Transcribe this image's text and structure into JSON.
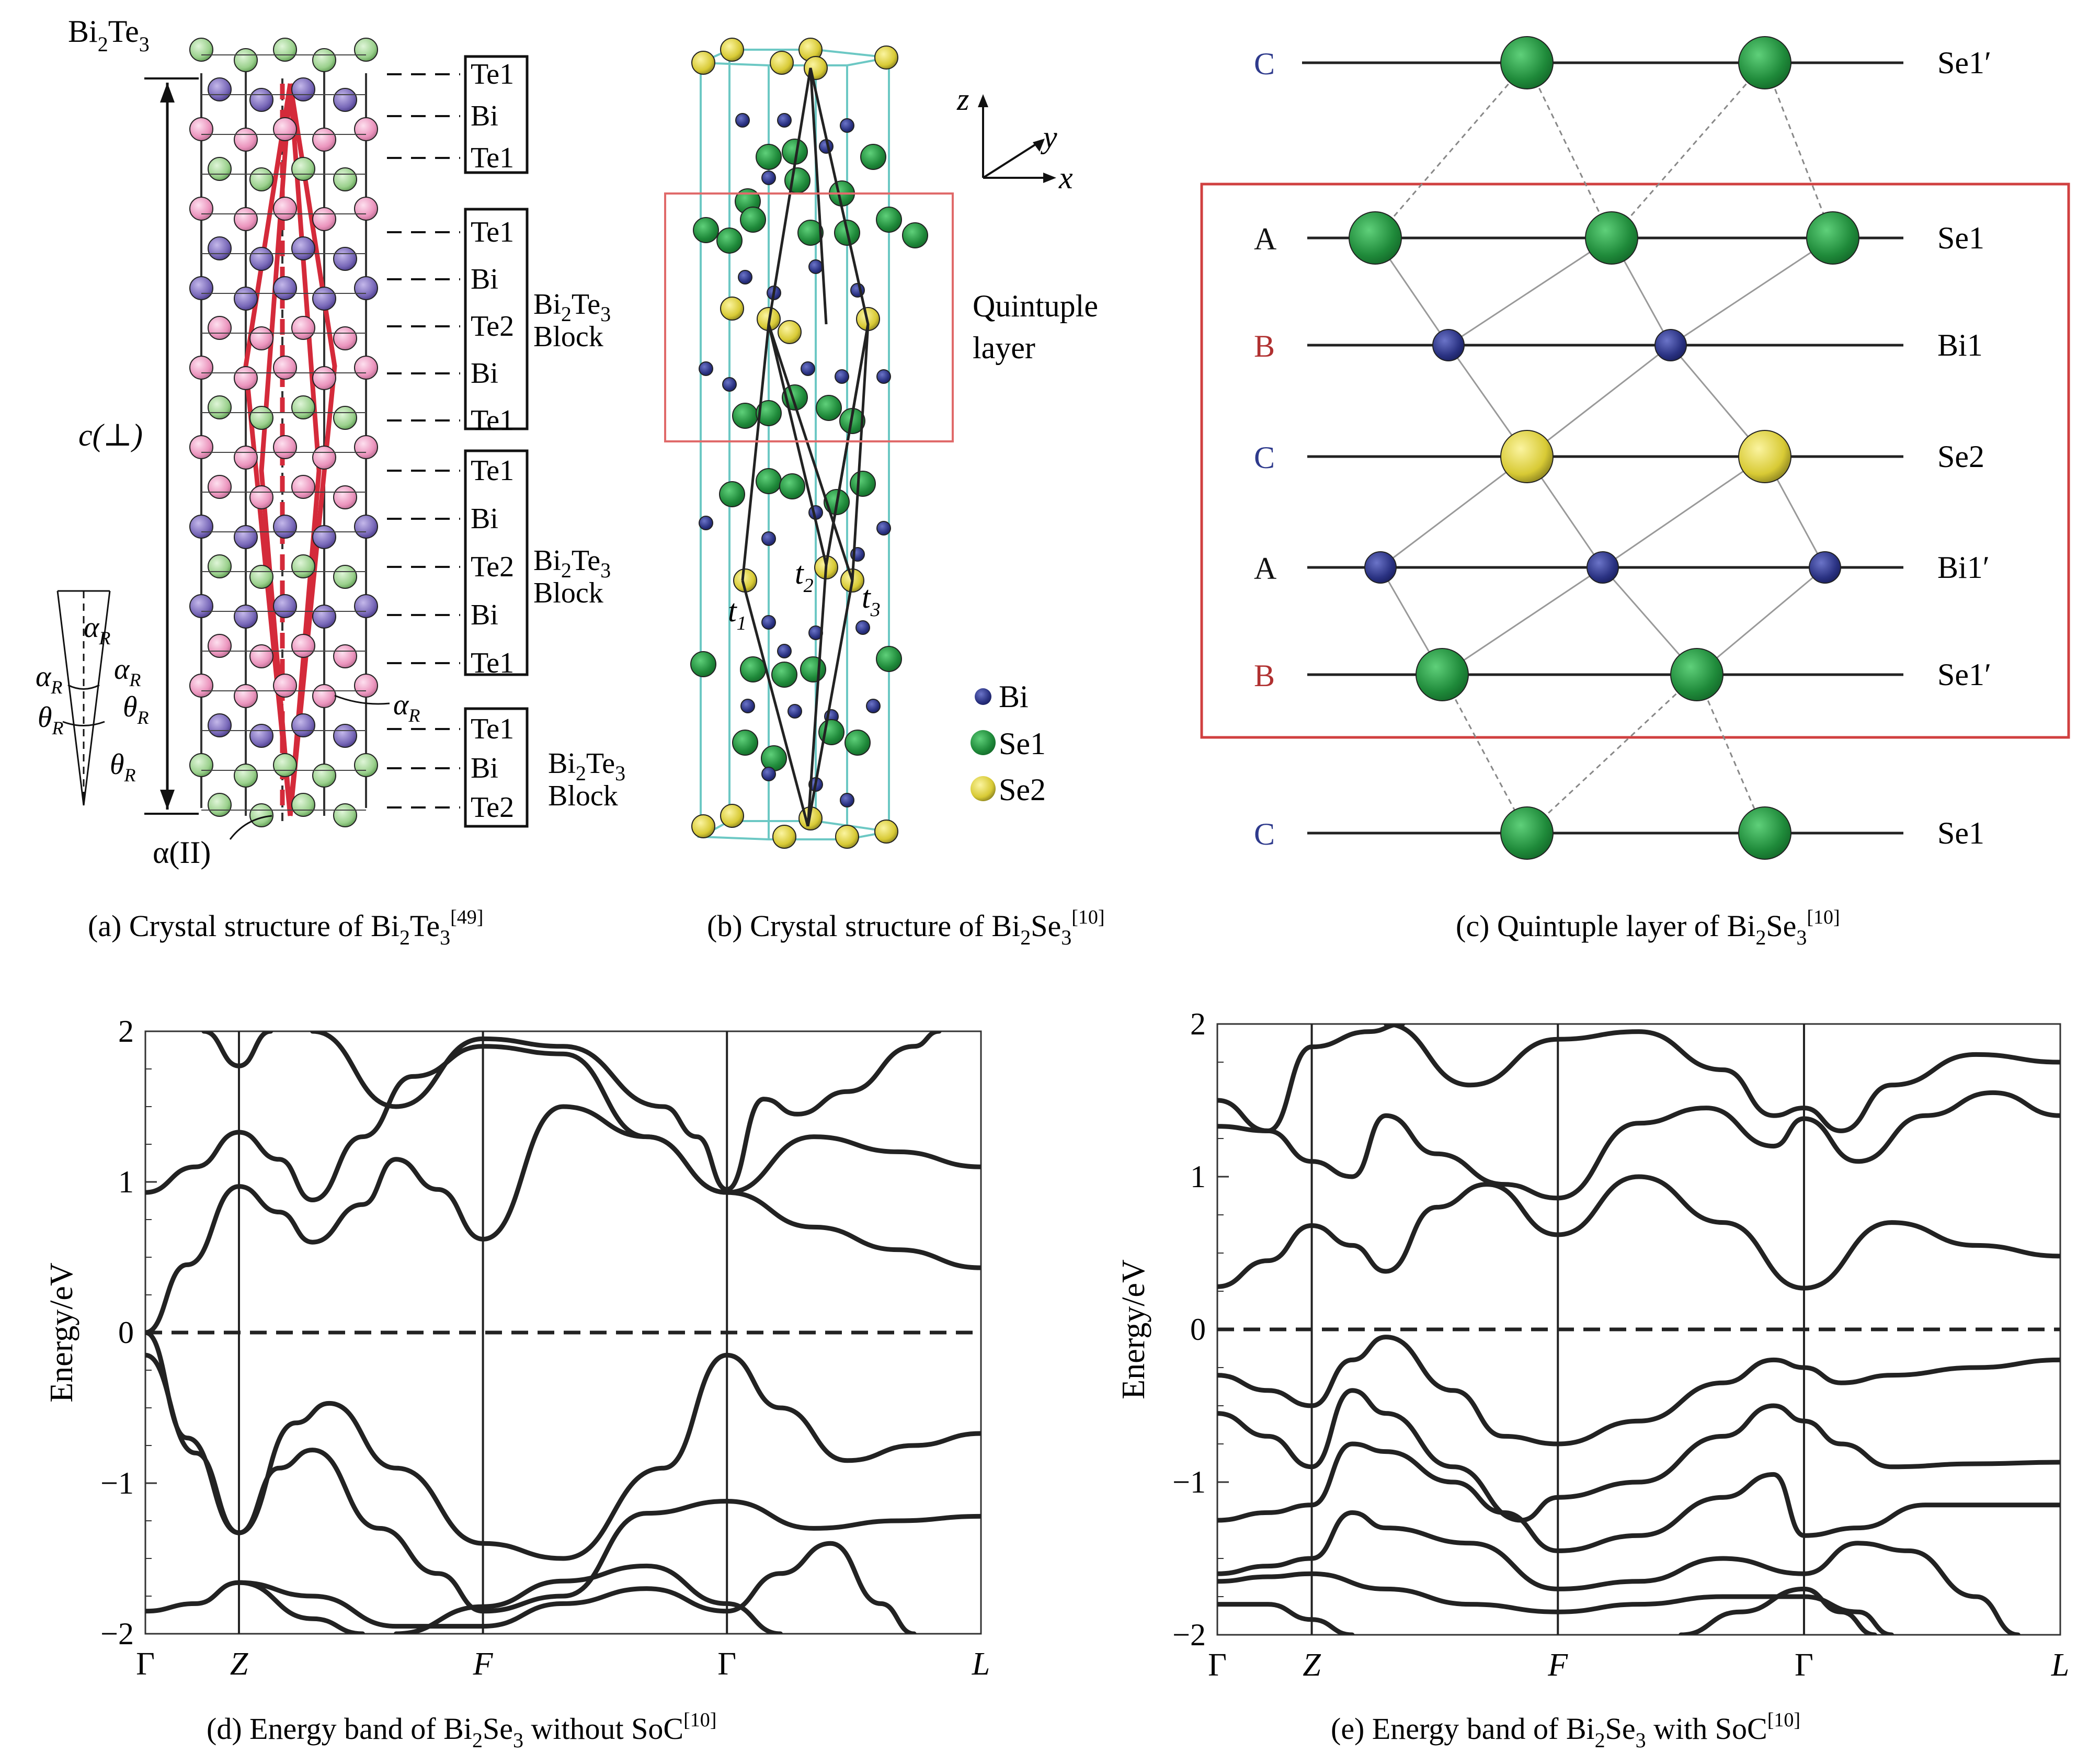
{
  "panel_a": {
    "title_main": "Bi",
    "title_sub1": "2",
    "title_mid": "Te",
    "title_sub2": "3",
    "c_label": "c(⊥)",
    "alpha_ii": "α(II)",
    "alpha_r": "α",
    "theta_r": "θ",
    "sub_r": "R",
    "layers_top": [
      "Te1",
      "Bi",
      "Te1"
    ],
    "layers_block1": [
      "Te1",
      "Bi",
      "Te2",
      "Bi",
      "Te1"
    ],
    "layers_block2": [
      "Te1",
      "Bi",
      "Te2",
      "Bi",
      "Te1"
    ],
    "layers_block3": [
      "Te1",
      "Bi",
      "Te2"
    ],
    "block_word": "Block",
    "block_formula": "Bi",
    "block_sub1": "2",
    "block_te": "Te",
    "block_sub2": "3",
    "caption_pre": "(a) Crystal structure of Bi",
    "caption_s1": "2",
    "caption_mid": "Te",
    "caption_s2": "3",
    "caption_ref": "[49]"
  },
  "panel_b": {
    "axis_z": "z",
    "axis_y": "y",
    "axis_x": "x",
    "ql_line1": "Quintuple",
    "ql_line2": "layer",
    "t1": "t",
    "t1s": "1",
    "t2": "t",
    "t2s": "2",
    "t3": "t",
    "t3s": "3",
    "legend": [
      {
        "label": "Bi",
        "color": "#2e3a8c"
      },
      {
        "label": "Se1",
        "color": "#2e9a44"
      },
      {
        "label": "Se2",
        "color": "#d9d13a"
      }
    ],
    "caption_pre": "(b) Crystal structure of Bi",
    "caption_s1": "2",
    "caption_mid": "Se",
    "caption_s2": "3",
    "caption_ref": "[10]"
  },
  "panel_c": {
    "rows": [
      {
        "letter": "C",
        "letter_color": "#2e3a8c",
        "label": "Se1′"
      },
      {
        "letter": "A",
        "letter_color": "#111111",
        "label": "Se1"
      },
      {
        "letter": "B",
        "letter_color": "#b03030",
        "label": "Bi1"
      },
      {
        "letter": "C",
        "letter_color": "#2e3a8c",
        "label": "Se2"
      },
      {
        "letter": "A",
        "letter_color": "#111111",
        "label": "Bi1′"
      },
      {
        "letter": "B",
        "letter_color": "#b03030",
        "label": "Se1′"
      },
      {
        "letter": "C",
        "letter_color": "#2e3a8c",
        "label": "Se1"
      }
    ],
    "box_color": "#d04040",
    "caption_pre": "(c) Quintuple layer of Bi",
    "caption_s1": "2",
    "caption_mid": "Se",
    "caption_s2": "3",
    "caption_ref": "[10]"
  },
  "chart_data": [
    {
      "type": "line",
      "ylabel": "Energy/eV",
      "ylim": [
        -2,
        2
      ],
      "yticks": [
        "2",
        "1",
        "0",
        "−1",
        "−2"
      ],
      "x_labels": [
        "Γ",
        "Z",
        "F",
        "Γ",
        "L"
      ],
      "x_positions": [
        0,
        0.112,
        0.404,
        0.696,
        1.0
      ],
      "fermi_level": 0,
      "caption_pre": "(d) Energy band of Bi",
      "caption_s1": "2",
      "caption_mid": "Se",
      "caption_s2": "3",
      "caption_post": " without SoC",
      "caption_ref": "[10]",
      "series": [
        {
          "points": [
            [
              0,
              0
            ],
            [
              0.05,
              0.45
            ],
            [
              0.112,
              0.97
            ],
            [
              0.16,
              0.8
            ],
            [
              0.2,
              0.6
            ],
            [
              0.26,
              0.85
            ],
            [
              0.3,
              1.15
            ],
            [
              0.35,
              0.95
            ],
            [
              0.404,
              0.62
            ],
            [
              0.5,
              1.5
            ],
            [
              0.6,
              1.3
            ],
            [
              0.696,
              0.93
            ],
            [
              0.8,
              1.3
            ],
            [
              0.9,
              1.2
            ],
            [
              1.0,
              1.1
            ]
          ]
        },
        {
          "points": [
            [
              0,
              0.93
            ],
            [
              0.06,
              1.1
            ],
            [
              0.112,
              1.33
            ],
            [
              0.16,
              1.15
            ],
            [
              0.2,
              0.88
            ],
            [
              0.26,
              1.3
            ],
            [
              0.32,
              1.7
            ],
            [
              0.404,
              1.9
            ],
            [
              0.5,
              1.85
            ],
            [
              0.6,
              1.3
            ],
            [
              0.696,
              0.93
            ],
            [
              0.8,
              0.7
            ],
            [
              0.9,
              0.55
            ],
            [
              1.0,
              0.43
            ]
          ]
        },
        {
          "points": [
            [
              0.07,
              2.0
            ],
            [
              0.112,
              1.77
            ],
            [
              0.15,
              2.0
            ]
          ]
        },
        {
          "points": [
            [
              0.2,
              2.0
            ],
            [
              0.3,
              1.5
            ],
            [
              0.404,
              1.95
            ],
            [
              0.5,
              1.9
            ],
            [
              0.62,
              1.5
            ],
            [
              0.66,
              1.3
            ],
            [
              0.696,
              0.95
            ],
            [
              0.74,
              1.55
            ],
            [
              0.78,
              1.45
            ],
            [
              0.84,
              1.6
            ],
            [
              0.92,
              1.9
            ],
            [
              0.95,
              2.0
            ]
          ]
        },
        {
          "points": [
            [
              0,
              0
            ],
            [
              0.05,
              -0.7
            ],
            [
              0.112,
              -1.33
            ],
            [
              0.18,
              -0.6
            ],
            [
              0.22,
              -0.47
            ],
            [
              0.3,
              -0.9
            ],
            [
              0.404,
              -1.4
            ],
            [
              0.5,
              -1.5
            ],
            [
              0.62,
              -0.9
            ],
            [
              0.696,
              -0.15
            ],
            [
              0.76,
              -0.5
            ],
            [
              0.84,
              -0.85
            ],
            [
              0.92,
              -0.75
            ],
            [
              1.0,
              -0.67
            ]
          ]
        },
        {
          "points": [
            [
              0,
              -0.15
            ],
            [
              0.06,
              -0.8
            ],
            [
              0.112,
              -1.33
            ],
            [
              0.16,
              -0.9
            ],
            [
              0.2,
              -0.78
            ],
            [
              0.28,
              -1.3
            ],
            [
              0.35,
              -1.6
            ],
            [
              0.404,
              -1.85
            ],
            [
              0.5,
              -1.75
            ],
            [
              0.6,
              -1.2
            ],
            [
              0.696,
              -1.12
            ],
            [
              0.8,
              -1.3
            ],
            [
              0.9,
              -1.25
            ],
            [
              1.0,
              -1.22
            ]
          ]
        },
        {
          "points": [
            [
              0,
              -1.85
            ],
            [
              0.06,
              -1.8
            ],
            [
              0.112,
              -1.66
            ],
            [
              0.2,
              -1.75
            ],
            [
              0.3,
              -1.95
            ],
            [
              0.404,
              -1.95
            ],
            [
              0.5,
              -1.8
            ],
            [
              0.6,
              -1.7
            ],
            [
              0.696,
              -1.85
            ],
            [
              0.76,
              -1.6
            ],
            [
              0.82,
              -1.4
            ],
            [
              0.88,
              -1.8
            ],
            [
              0.92,
              -2.0
            ]
          ]
        },
        {
          "points": [
            [
              0.112,
              -1.66
            ],
            [
              0.2,
              -1.9
            ],
            [
              0.26,
              -2.0
            ]
          ]
        },
        {
          "points": [
            [
              0.3,
              -2.0
            ],
            [
              0.404,
              -1.82
            ],
            [
              0.5,
              -1.65
            ],
            [
              0.6,
              -1.55
            ],
            [
              0.696,
              -1.8
            ],
            [
              0.76,
              -2.0
            ]
          ]
        }
      ]
    },
    {
      "type": "line",
      "ylabel": "Energy/eV",
      "ylim": [
        -2,
        2
      ],
      "yticks": [
        "2",
        "1",
        "0",
        "−1",
        "−2"
      ],
      "x_labels": [
        "Γ",
        "Z",
        "F",
        "Γ",
        "L"
      ],
      "x_positions": [
        0,
        0.112,
        0.404,
        0.696,
        1.0
      ],
      "fermi_level": 0,
      "caption_pre": "(e) Energy band of Bi",
      "caption_s1": "2",
      "caption_mid": "Se",
      "caption_s2": "3",
      "caption_post": " with SoC",
      "caption_ref": "[10]",
      "series": [
        {
          "points": [
            [
              0,
              0.28
            ],
            [
              0.06,
              0.45
            ],
            [
              0.112,
              0.68
            ],
            [
              0.16,
              0.55
            ],
            [
              0.2,
              0.38
            ],
            [
              0.26,
              0.8
            ],
            [
              0.32,
              0.95
            ],
            [
              0.404,
              0.62
            ],
            [
              0.5,
              1.0
            ],
            [
              0.6,
              0.7
            ],
            [
              0.696,
              0.27
            ],
            [
              0.8,
              0.7
            ],
            [
              0.9,
              0.55
            ],
            [
              1.0,
              0.48
            ]
          ]
        },
        {
          "points": [
            [
              0,
              1.33
            ],
            [
              0.06,
              1.3
            ],
            [
              0.112,
              1.1
            ],
            [
              0.16,
              1.0
            ],
            [
              0.2,
              1.4
            ],
            [
              0.26,
              1.15
            ],
            [
              0.34,
              0.95
            ],
            [
              0.404,
              0.86
            ],
            [
              0.5,
              1.35
            ],
            [
              0.58,
              1.45
            ],
            [
              0.66,
              1.2
            ],
            [
              0.696,
              1.38
            ],
            [
              0.76,
              1.1
            ],
            [
              0.84,
              1.4
            ],
            [
              0.92,
              1.55
            ],
            [
              1.0,
              1.4
            ]
          ]
        },
        {
          "points": [
            [
              0,
              1.5
            ],
            [
              0.06,
              1.3
            ],
            [
              0.112,
              1.85
            ],
            [
              0.18,
              1.95
            ],
            [
              0.22,
              2.0
            ]
          ]
        },
        {
          "points": [
            [
              0.2,
              2.0
            ],
            [
              0.3,
              1.6
            ],
            [
              0.404,
              1.9
            ],
            [
              0.5,
              1.95
            ],
            [
              0.6,
              1.7
            ],
            [
              0.66,
              1.4
            ],
            [
              0.696,
              1.45
            ],
            [
              0.74,
              1.3
            ],
            [
              0.8,
              1.6
            ],
            [
              0.9,
              1.8
            ],
            [
              1.0,
              1.75
            ]
          ]
        },
        {
          "points": [
            [
              0,
              -0.3
            ],
            [
              0.06,
              -0.4
            ],
            [
              0.112,
              -0.5
            ],
            [
              0.16,
              -0.2
            ],
            [
              0.2,
              -0.05
            ],
            [
              0.28,
              -0.4
            ],
            [
              0.34,
              -0.7
            ],
            [
              0.404,
              -0.75
            ],
            [
              0.5,
              -0.6
            ],
            [
              0.6,
              -0.35
            ],
            [
              0.66,
              -0.2
            ],
            [
              0.696,
              -0.25
            ],
            [
              0.74,
              -0.35
            ],
            [
              0.8,
              -0.3
            ],
            [
              0.9,
              -0.25
            ],
            [
              1.0,
              -0.2
            ]
          ]
        },
        {
          "points": [
            [
              0,
              -0.55
            ],
            [
              0.06,
              -0.7
            ],
            [
              0.112,
              -0.9
            ],
            [
              0.16,
              -0.4
            ],
            [
              0.2,
              -0.55
            ],
            [
              0.28,
              -0.9
            ],
            [
              0.36,
              -1.25
            ],
            [
              0.404,
              -1.1
            ],
            [
              0.5,
              -1.0
            ],
            [
              0.6,
              -0.7
            ],
            [
              0.66,
              -0.5
            ],
            [
              0.696,
              -0.6
            ],
            [
              0.74,
              -0.75
            ],
            [
              0.8,
              -0.9
            ],
            [
              0.9,
              -0.88
            ],
            [
              1.0,
              -0.87
            ]
          ]
        },
        {
          "points": [
            [
              0,
              -1.25
            ],
            [
              0.06,
              -1.2
            ],
            [
              0.112,
              -1.15
            ],
            [
              0.16,
              -0.75
            ],
            [
              0.2,
              -0.8
            ],
            [
              0.28,
              -1.0
            ],
            [
              0.34,
              -1.2
            ],
            [
              0.404,
              -1.45
            ],
            [
              0.5,
              -1.35
            ],
            [
              0.6,
              -1.1
            ],
            [
              0.66,
              -0.95
            ],
            [
              0.696,
              -1.35
            ],
            [
              0.76,
              -1.3
            ],
            [
              0.84,
              -1.15
            ],
            [
              0.9,
              -1.15
            ],
            [
              1.0,
              -1.15
            ]
          ]
        },
        {
          "points": [
            [
              0,
              -1.6
            ],
            [
              0.06,
              -1.55
            ],
            [
              0.112,
              -1.5
            ],
            [
              0.16,
              -1.2
            ],
            [
              0.2,
              -1.3
            ],
            [
              0.3,
              -1.4
            ],
            [
              0.404,
              -1.7
            ],
            [
              0.5,
              -1.65
            ],
            [
              0.6,
              -1.5
            ],
            [
              0.696,
              -1.6
            ],
            [
              0.76,
              -1.4
            ],
            [
              0.82,
              -1.45
            ],
            [
              0.9,
              -1.75
            ],
            [
              0.95,
              -2.0
            ]
          ]
        },
        {
          "points": [
            [
              0,
              -1.65
            ],
            [
              0.06,
              -1.62
            ],
            [
              0.112,
              -1.6
            ],
            [
              0.2,
              -1.7
            ],
            [
              0.3,
              -1.8
            ],
            [
              0.404,
              -1.85
            ],
            [
              0.5,
              -1.8
            ],
            [
              0.6,
              -1.75
            ],
            [
              0.696,
              -1.75
            ],
            [
              0.76,
              -1.85
            ],
            [
              0.8,
              -2.0
            ]
          ]
        },
        {
          "points": [
            [
              0,
              -1.8
            ],
            [
              0.06,
              -1.8
            ],
            [
              0.112,
              -1.9
            ],
            [
              0.16,
              -2.0
            ]
          ]
        },
        {
          "points": [
            [
              0.55,
              -2.0
            ],
            [
              0.62,
              -1.85
            ],
            [
              0.696,
              -1.7
            ],
            [
              0.74,
              -1.85
            ],
            [
              0.78,
              -2.0
            ]
          ]
        }
      ]
    }
  ]
}
